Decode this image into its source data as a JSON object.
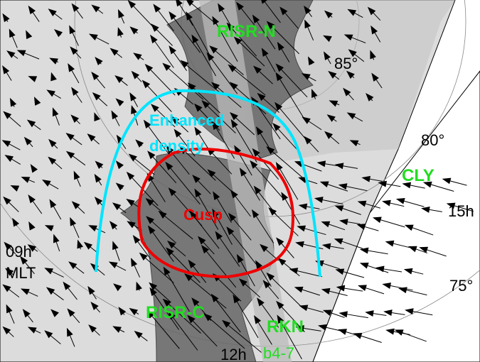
{
  "labels": {
    "risr_n": "RISR-N",
    "lat85": "85°",
    "enhanced_1": "Enhanced",
    "enhanced_2": "density",
    "lat80": "80°",
    "cly": "CLY",
    "cusp": "Cusp",
    "mlt15": "15h",
    "mlt09": "09h",
    "mlt": "MLT",
    "lat75": "75°",
    "risr_c": "RISR-C",
    "rkn": "RKN",
    "mlt12": "12h",
    "beams": "b4-7"
  }
}
